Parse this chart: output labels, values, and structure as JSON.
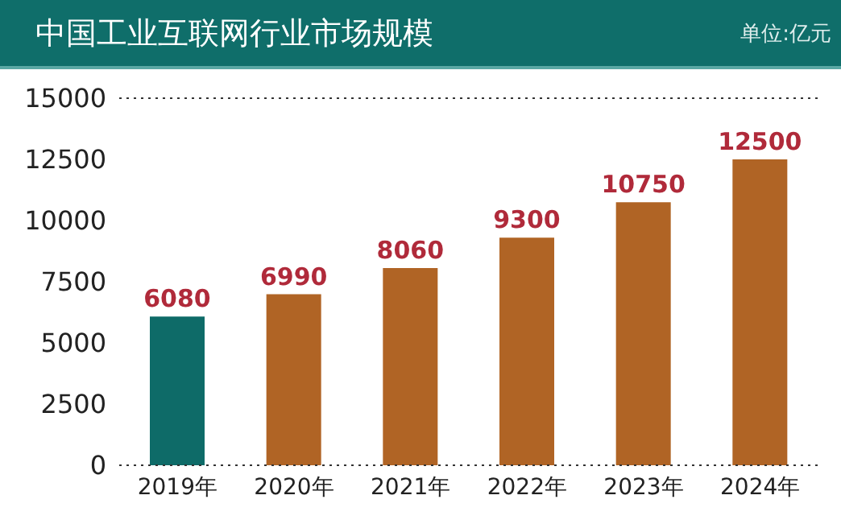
{
  "chart_data": {
    "type": "bar",
    "title": "中国工业互联网行业市场规模",
    "subtitle": "单位:亿元",
    "categories": [
      "2019年",
      "2020年",
      "2021年",
      "2022年",
      "2023年",
      "2024年"
    ],
    "values": [
      6080,
      6990,
      8060,
      9300,
      10750,
      12500
    ],
    "colors": [
      "#0e6b68",
      "#b06425",
      "#b06425",
      "#b06425",
      "#b06425",
      "#b06425"
    ],
    "ylim": [
      0,
      15000
    ],
    "yticks": [
      0,
      2500,
      5000,
      7500,
      10000,
      12500,
      15000
    ],
    "grid": false,
    "data_labels": true,
    "ref_lines": [
      {
        "axis": "y",
        "value": 15000,
        "color": "#333333",
        "line_style": "dotted"
      },
      {
        "axis": "y",
        "value": 0,
        "color": "#333333",
        "line_style": "dotted"
      }
    ]
  }
}
